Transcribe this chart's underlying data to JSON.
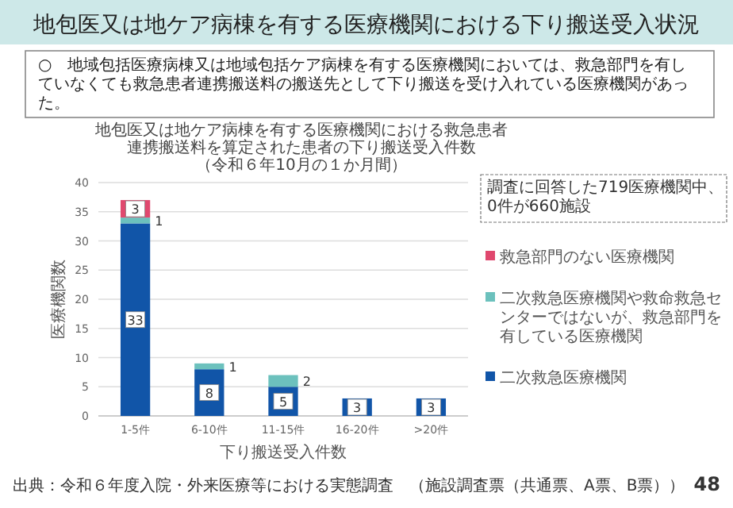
{
  "chart_data": {
    "type": "bar",
    "stacked": true,
    "title": "地包医又は地ケア病棟を有する医療機関における救急患者連携搬送料を算定された患者の下り搬送受入件数（令和６年10月の１か月間）",
    "subtitle": "○　地域包括医療病棟又は地域包括ケア病棟を有する医療機関においては、救急部門を有していなくても救急患者連携搬送料の搬送先として下り搬送を受け入れている医療機関があった。",
    "xlabel": "下り搬送受入件数",
    "ylabel": "医療機関数",
    "categories": [
      "1-5件",
      "6-10件",
      "11-15件",
      "16-20件",
      ">20件"
    ],
    "series": [
      {
        "name": "二次救急医療機関",
        "color": "#1155a8",
        "values": [
          33,
          8,
          5,
          3,
          3
        ]
      },
      {
        "name": "二次救急医療機関や救命救急センターではないが、救急部門を有している医療機関",
        "color": "#6cc1bd",
        "values": [
          1,
          1,
          2,
          null,
          null
        ]
      },
      {
        "name": "救急部門のない医療機関",
        "color": "#e0486e",
        "values": [
          3,
          null,
          null,
          null,
          null
        ]
      }
    ],
    "ylim": [
      0,
      40
    ],
    "yticks": [
      0,
      5,
      10,
      15,
      20,
      25,
      30,
      35,
      40
    ],
    "grid": "y",
    "legend": "right",
    "data_labels": true,
    "annotations": [
      "地包医又は地ケア病棟を有する医療機関における下り搬送受入状況",
      "調査に回答した719医療機関中、0件が660施設",
      "出典：令和６年度入院・外来医療等における実態調査　（施設調査票（共通票、A票、B票））",
      "48"
    ]
  }
}
